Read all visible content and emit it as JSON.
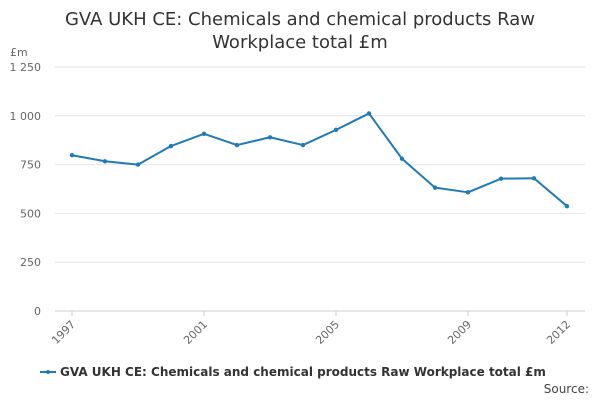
{
  "chart_data": {
    "type": "line",
    "title": "GVA UKH CE: Chemicals and chemical products Raw Workplace total £m",
    "ylabel": "£m",
    "xlabel": "",
    "x": [
      1997,
      1998,
      1999,
      2000,
      2001,
      2002,
      2003,
      2004,
      2005,
      2006,
      2007,
      2008,
      2009,
      2010,
      2011,
      2012
    ],
    "x_tick_labels": [
      "1997",
      "2001",
      "2005",
      "2009",
      "2012"
    ],
    "y_tick_labels": [
      "0",
      "250",
      "500",
      "750",
      "1 000",
      "1 250"
    ],
    "ylim": [
      0,
      1250
    ],
    "series": [
      {
        "name": "GVA UKH CE: Chemicals and chemical products Raw Workplace total £m",
        "values": [
          798,
          767,
          750,
          845,
          908,
          850,
          890,
          850,
          928,
          1012,
          780,
          632,
          608,
          678,
          680,
          537
        ],
        "color": "#1f7bb8"
      }
    ],
    "grid": true,
    "legend_position": "bottom"
  },
  "source_label": "Source:"
}
